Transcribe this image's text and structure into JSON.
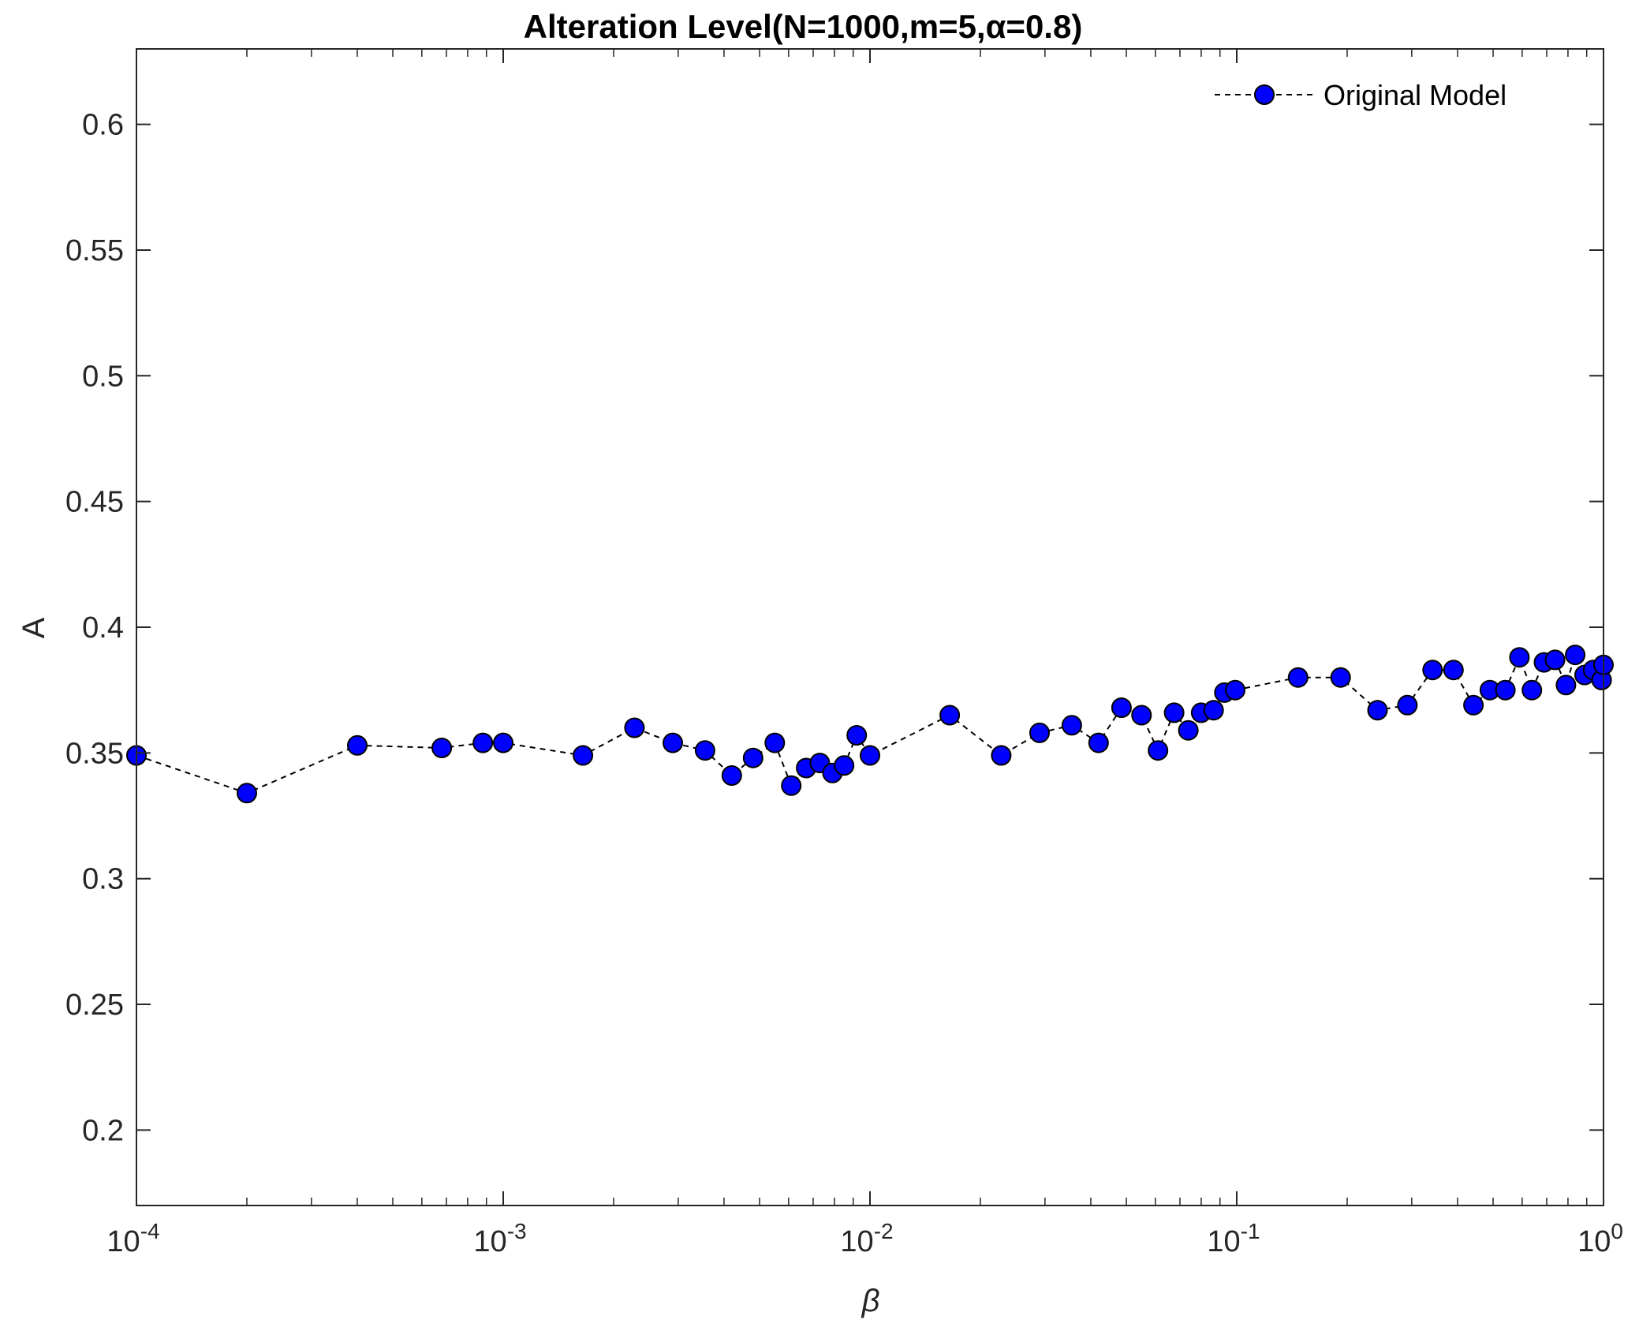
{
  "chart_data": {
    "type": "scatter",
    "title": "Alteration Level(N=1000,m=5,α=0.8)",
    "xlabel": "β",
    "ylabel": "A",
    "xscale": "log",
    "xlim": [
      0.0001,
      1
    ],
    "ylim": [
      0.17,
      0.63
    ],
    "yticks": [
      0.2,
      0.25,
      0.3,
      0.35,
      0.4,
      0.45,
      0.5,
      0.55,
      0.6
    ],
    "ytick_labels": [
      "0.2",
      "0.25",
      "0.3",
      "0.35",
      "0.4",
      "0.45",
      "0.5",
      "0.55",
      "0.6"
    ],
    "xticks": [
      {
        "value": 0.0001,
        "base": "10",
        "exp": "-4"
      },
      {
        "value": 0.001,
        "base": "10",
        "exp": "-3"
      },
      {
        "value": 0.01,
        "base": "10",
        "exp": "-2"
      },
      {
        "value": 0.1,
        "base": "10",
        "exp": "-1"
      },
      {
        "value": 1,
        "base": "10",
        "exp": "0"
      }
    ],
    "grid": false,
    "legend_position": "top-right",
    "series": [
      {
        "name": "Original Model",
        "color": "#0000ff",
        "edge_color": "#000000",
        "line_style": "dashed",
        "marker": "circle",
        "x": [
          0.0001,
          0.0002,
          0.0004,
          0.00068,
          0.00088,
          0.001,
          0.00165,
          0.00228,
          0.0029,
          0.00355,
          0.0042,
          0.0048,
          0.0055,
          0.0061,
          0.0067,
          0.0073,
          0.0079,
          0.0085,
          0.0092,
          0.01,
          0.0165,
          0.0228,
          0.029,
          0.0355,
          0.042,
          0.0485,
          0.055,
          0.061,
          0.0675,
          0.0738,
          0.08,
          0.0865,
          0.0925,
          0.099,
          0.147,
          0.192,
          0.242,
          0.292,
          0.342,
          0.39,
          0.442,
          0.49,
          0.54,
          0.59,
          0.638,
          0.688,
          0.738,
          0.79,
          0.837,
          0.888,
          0.937,
          0.988,
          1.0
        ],
        "y": [
          0.349,
          0.334,
          0.353,
          0.352,
          0.354,
          0.354,
          0.349,
          0.36,
          0.354,
          0.351,
          0.341,
          0.348,
          0.354,
          0.337,
          0.344,
          0.346,
          0.342,
          0.345,
          0.357,
          0.349,
          0.365,
          0.349,
          0.358,
          0.361,
          0.354,
          0.368,
          0.365,
          0.351,
          0.366,
          0.359,
          0.366,
          0.367,
          0.374,
          0.375,
          0.38,
          0.38,
          0.367,
          0.369,
          0.383,
          0.383,
          0.369,
          0.375,
          0.375,
          0.388,
          0.375,
          0.386,
          0.387,
          0.377,
          0.389,
          0.381,
          0.383,
          0.379,
          0.385
        ]
      }
    ]
  }
}
